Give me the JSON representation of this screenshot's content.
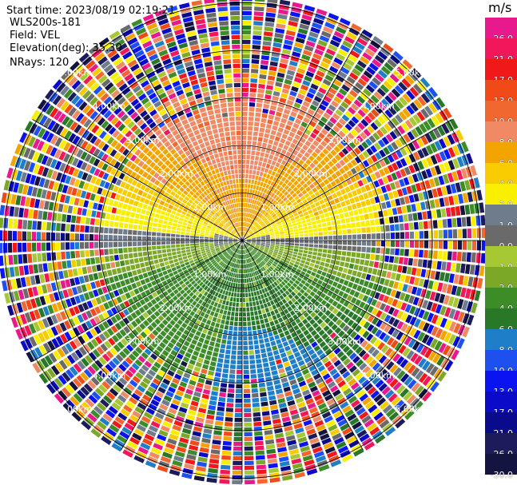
{
  "header": {
    "start_time": "Start time: 2023/08/19 02:19:21",
    "instrument": "WLS200s-181",
    "field": "Field: VEL",
    "elevation": "Elevation(deg): 35.30",
    "nrays": "NRays: 120"
  },
  "colorbar": {
    "unit": "m/s",
    "entries": [
      {
        "label": "26.0",
        "color": "#e8198c"
      },
      {
        "label": "21.0",
        "color": "#f0185a"
      },
      {
        "label": "17.0",
        "color": "#f01818"
      },
      {
        "label": "13.0",
        "color": "#f04a18"
      },
      {
        "label": "10.0",
        "color": "#f06830"
      },
      {
        "label": "8.0",
        "color": "#f08a64"
      },
      {
        "label": "6.0",
        "color": "#f4a400"
      },
      {
        "label": "4.0",
        "color": "#f8cc00"
      },
      {
        "label": "2.0",
        "color": "#f8f000"
      },
      {
        "label": "1.0",
        "color": "#6e7c8c"
      },
      {
        "label": "0.0",
        "color": "#6a6a6a"
      },
      {
        "label": "-1.0",
        "color": "#a6c832"
      },
      {
        "label": "-2.0",
        "color": "#7ca828"
      },
      {
        "label": "-4.0",
        "color": "#3c8c28"
      },
      {
        "label": "-6.0",
        "color": "#287828"
      },
      {
        "label": "-8.0",
        "color": "#1e7ec8"
      },
      {
        "label": "-10.0",
        "color": "#1e50f0"
      },
      {
        "label": "-13.0",
        "color": "#0a14f0"
      },
      {
        "label": "-17.0",
        "color": "#0a0ac8"
      },
      {
        "label": "-21.0",
        "color": "#0a0a8c"
      },
      {
        "label": "-26.0",
        "color": "#1c1c5a"
      },
      {
        "label": "-30.0",
        "color": "#141440"
      }
    ]
  },
  "range_rings": [
    {
      "label": "1.00km",
      "range_km": 1
    },
    {
      "label": "2.00km",
      "range_km": 2
    },
    {
      "label": "3.00km",
      "range_km": 3
    },
    {
      "label": "4.00km",
      "range_km": 4
    },
    {
      "label": "5.00km",
      "range_km": 5
    }
  ],
  "sectors": {
    "north": "positive velocity (yellow-orange-salmon)",
    "south": "negative velocity (green-blue)"
  }
}
